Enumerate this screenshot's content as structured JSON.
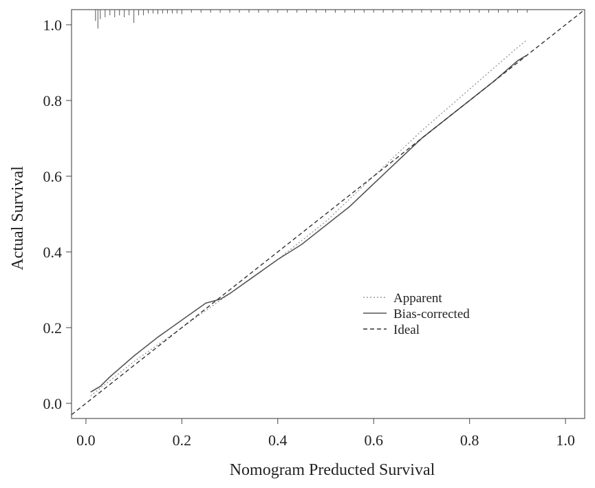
{
  "chart_data": {
    "type": "line",
    "title": "",
    "xlabel": "Nomogram Preducted Survival",
    "ylabel": "Actual Survival",
    "xlim": [
      -0.03,
      1.04
    ],
    "ylim": [
      -0.04,
      1.04
    ],
    "xticks": [
      0.0,
      0.2,
      0.4,
      0.6,
      0.8,
      1.0
    ],
    "yticks": [
      0.0,
      0.2,
      0.4,
      0.6,
      0.8,
      1.0
    ],
    "xtick_labels": [
      "0.0",
      "0.2",
      "0.4",
      "0.6",
      "0.8",
      "1.0"
    ],
    "ytick_labels": [
      "0.0",
      "0.2",
      "0.4",
      "0.6",
      "0.8",
      "1.0"
    ],
    "legend_position": "center-right",
    "series": [
      {
        "name": "Apparent",
        "style": "dotted",
        "color": "#9a9a9a",
        "x": [
          0.01,
          0.1,
          0.2,
          0.3,
          0.4,
          0.5,
          0.6,
          0.7,
          0.8,
          0.9,
          0.92
        ],
        "y": [
          0.02,
          0.11,
          0.2,
          0.29,
          0.38,
          0.48,
          0.6,
          0.72,
          0.83,
          0.94,
          0.96
        ]
      },
      {
        "name": "Bias-corrected",
        "style": "solid",
        "color": "#555555",
        "x": [
          0.01,
          0.03,
          0.05,
          0.1,
          0.15,
          0.2,
          0.25,
          0.28,
          0.3,
          0.35,
          0.4,
          0.45,
          0.5,
          0.55,
          0.6,
          0.65,
          0.7,
          0.75,
          0.8,
          0.85,
          0.9,
          0.92
        ],
        "y": [
          0.03,
          0.045,
          0.07,
          0.125,
          0.175,
          0.22,
          0.265,
          0.275,
          0.29,
          0.335,
          0.38,
          0.42,
          0.47,
          0.52,
          0.58,
          0.64,
          0.7,
          0.75,
          0.8,
          0.85,
          0.905,
          0.92
        ]
      },
      {
        "name": "Ideal",
        "style": "dashed",
        "color": "#333333",
        "x": [
          -0.03,
          1.04
        ],
        "y": [
          -0.03,
          1.04
        ]
      }
    ],
    "rug": {
      "position": "top",
      "x": [
        0.02,
        0.025,
        0.03,
        0.04,
        0.05,
        0.06,
        0.07,
        0.08,
        0.09,
        0.1,
        0.11,
        0.12,
        0.13,
        0.14,
        0.15,
        0.16,
        0.17,
        0.18,
        0.19,
        0.2,
        0.22,
        0.24,
        0.26,
        0.28,
        0.3,
        0.32,
        0.34,
        0.36,
        0.38,
        0.4,
        0.42,
        0.44,
        0.46,
        0.48,
        0.5,
        0.52,
        0.54,
        0.56,
        0.58,
        0.6,
        0.62,
        0.64,
        0.66,
        0.68,
        0.7,
        0.72,
        0.74,
        0.76,
        0.78,
        0.8,
        0.82,
        0.84,
        0.86,
        0.88,
        0.9,
        0.92
      ],
      "heights": [
        0.03,
        0.05,
        0.025,
        0.02,
        0.015,
        0.02,
        0.015,
        0.02,
        0.015,
        0.035,
        0.015,
        0.015,
        0.01,
        0.01,
        0.012,
        0.01,
        0.01,
        0.01,
        0.01,
        0.012,
        0.008,
        0.008,
        0.008,
        0.008,
        0.008,
        0.008,
        0.008,
        0.008,
        0.008,
        0.008,
        0.008,
        0.008,
        0.008,
        0.008,
        0.008,
        0.008,
        0.008,
        0.008,
        0.008,
        0.008,
        0.008,
        0.008,
        0.008,
        0.008,
        0.008,
        0.008,
        0.008,
        0.008,
        0.008,
        0.008,
        0.008,
        0.008,
        0.008,
        0.008,
        0.008,
        0.008
      ]
    }
  }
}
